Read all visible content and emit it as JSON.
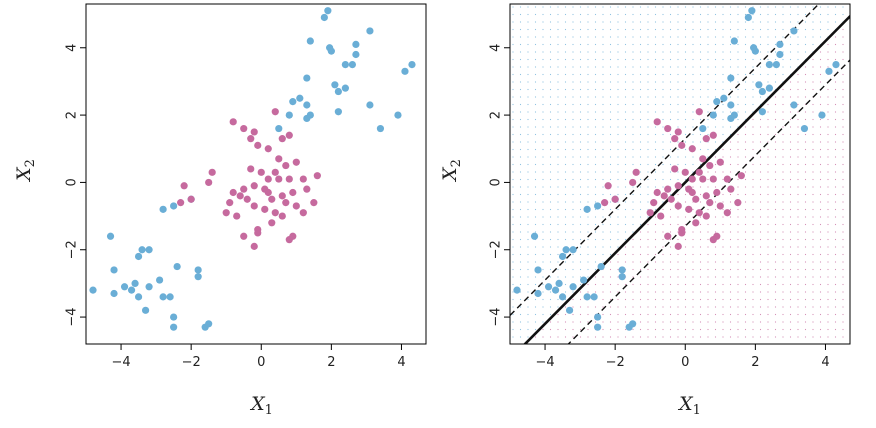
{
  "colors": {
    "blue": "#6aaed6",
    "magenta": "#c66a9e",
    "frame": "#000000",
    "grid_dot_blue": "#6aaed6",
    "grid_dot_magenta": "#c66a9e"
  },
  "chart_data": [
    {
      "type": "scatter",
      "title": "",
      "xlabel": "X",
      "xlabel_sub": "1",
      "ylabel": "X",
      "ylabel_sub": "2",
      "xlim": [
        -5,
        4.7
      ],
      "ylim": [
        -4.8,
        5.3
      ],
      "xticks": [
        -4,
        -2,
        0,
        2,
        4
      ],
      "yticks": [
        -4,
        -2,
        0,
        2,
        4
      ],
      "xtick_labels": [
        "−4",
        "−2",
        "0",
        "2",
        "4"
      ],
      "ytick_labels": [
        "−4",
        "−2",
        "0",
        "2",
        "4"
      ],
      "grid": false,
      "series": [
        {
          "color": "blue",
          "points": [
            [
              1.9,
              5.1
            ],
            [
              1.8,
              4.9
            ],
            [
              1.95,
              4.0
            ],
            [
              2.0,
              3.9
            ],
            [
              3.1,
              4.5
            ],
            [
              2.7,
              4.1
            ],
            [
              2.6,
              3.5
            ],
            [
              2.4,
              3.5
            ],
            [
              2.7,
              3.8
            ],
            [
              1.4,
              4.2
            ],
            [
              1.3,
              3.1
            ],
            [
              4.1,
              3.3
            ],
            [
              4.3,
              3.5
            ],
            [
              1.1,
              2.5
            ],
            [
              0.9,
              2.4
            ],
            [
              1.3,
              2.3
            ],
            [
              1.3,
              1.9
            ],
            [
              1.4,
              2.0
            ],
            [
              2.1,
              2.9
            ],
            [
              2.2,
              2.7
            ],
            [
              2.4,
              2.8
            ],
            [
              3.1,
              2.3
            ],
            [
              2.2,
              2.1
            ],
            [
              3.4,
              1.6
            ],
            [
              3.9,
              2.0
            ],
            [
              0.8,
              2.0
            ],
            [
              0.5,
              1.6
            ],
            [
              -4.8,
              -3.2
            ],
            [
              -4.2,
              -3.3
            ],
            [
              -4.3,
              -1.6
            ],
            [
              -4.2,
              -2.6
            ],
            [
              -3.9,
              -3.1
            ],
            [
              -3.7,
              -3.2
            ],
            [
              -3.5,
              -2.2
            ],
            [
              -3.4,
              -2.0
            ],
            [
              -3.6,
              -3.0
            ],
            [
              -3.2,
              -3.1
            ],
            [
              -3.2,
              -2.0
            ],
            [
              -3.5,
              -3.4
            ],
            [
              -3.3,
              -3.8
            ],
            [
              -2.9,
              -2.9
            ],
            [
              -2.8,
              -3.4
            ],
            [
              -2.6,
              -3.4
            ],
            [
              -2.8,
              -0.8
            ],
            [
              -2.5,
              -0.7
            ],
            [
              -2.4,
              -2.5
            ],
            [
              -2.5,
              -4.0
            ],
            [
              -2.5,
              -4.3
            ],
            [
              -1.8,
              -2.8
            ],
            [
              -1.8,
              -2.6
            ],
            [
              -1.6,
              -4.3
            ],
            [
              -1.5,
              -4.2
            ],
            [
              -2.0,
              -0.5
            ]
          ]
        },
        {
          "color": "magenta",
          "points": [
            [
              -0.8,
              1.8
            ],
            [
              -0.5,
              1.6
            ],
            [
              -0.3,
              1.3
            ],
            [
              -0.2,
              1.5
            ],
            [
              0.4,
              2.1
            ],
            [
              0.6,
              1.3
            ],
            [
              0.8,
              1.4
            ],
            [
              0.2,
              1.0
            ],
            [
              -0.1,
              1.1
            ],
            [
              0.5,
              0.7
            ],
            [
              0.7,
              0.5
            ],
            [
              1.0,
              0.6
            ],
            [
              -0.3,
              0.4
            ],
            [
              0.0,
              0.3
            ],
            [
              0.2,
              0.1
            ],
            [
              0.5,
              0.1
            ],
            [
              0.8,
              0.1
            ],
            [
              1.2,
              0.1
            ],
            [
              1.6,
              0.2
            ],
            [
              -2.2,
              -0.1
            ],
            [
              -2.0,
              -0.5
            ],
            [
              -2.3,
              -0.6
            ],
            [
              -1.5,
              0.0
            ],
            [
              -1.4,
              0.3
            ],
            [
              -0.8,
              -0.3
            ],
            [
              -0.6,
              -0.4
            ],
            [
              -0.5,
              -0.2
            ],
            [
              -0.2,
              -0.1
            ],
            [
              0.1,
              -0.2
            ],
            [
              0.3,
              -0.5
            ],
            [
              0.6,
              -0.4
            ],
            [
              0.9,
              -0.3
            ],
            [
              1.3,
              -0.2
            ],
            [
              1.5,
              -0.6
            ],
            [
              -1.0,
              -0.9
            ],
            [
              -0.7,
              -1.0
            ],
            [
              -0.4,
              -0.5
            ],
            [
              -0.2,
              -0.7
            ],
            [
              0.1,
              -0.8
            ],
            [
              0.4,
              -0.9
            ],
            [
              0.7,
              -0.6
            ],
            [
              1.0,
              -0.7
            ],
            [
              1.2,
              -0.9
            ],
            [
              -0.5,
              -1.6
            ],
            [
              -0.1,
              -1.4
            ],
            [
              0.3,
              -1.2
            ],
            [
              -0.2,
              -1.9
            ],
            [
              0.8,
              -1.7
            ],
            [
              0.9,
              -1.6
            ],
            [
              0.6,
              -1.0
            ],
            [
              -0.9,
              -0.6
            ],
            [
              -0.1,
              -1.5
            ],
            [
              0.2,
              -0.3
            ],
            [
              0.4,
              0.3
            ]
          ]
        }
      ]
    },
    {
      "type": "scatter",
      "title": "",
      "xlabel": "X",
      "xlabel_sub": "1",
      "ylabel": "X",
      "ylabel_sub": "2",
      "xlim": [
        -5,
        4.7
      ],
      "ylim": [
        -4.8,
        5.3
      ],
      "xticks": [
        -4,
        -2,
        0,
        2,
        4
      ],
      "yticks": [
        -4,
        -2,
        0,
        2,
        4
      ],
      "xtick_labels": [
        "−4",
        "−2",
        "0",
        "2",
        "4"
      ],
      "ytick_labels": [
        "−4",
        "−2",
        "0",
        "2",
        "4"
      ],
      "grid": false,
      "background": "dotted classification grid",
      "decision_boundary": {
        "slope": 1.05,
        "intercept": 0.0
      },
      "margins": [
        {
          "slope": 1.05,
          "intercept": 1.3
        },
        {
          "slope": 1.05,
          "intercept": -1.3
        }
      ],
      "series_ref": "same points as first panel"
    }
  ]
}
